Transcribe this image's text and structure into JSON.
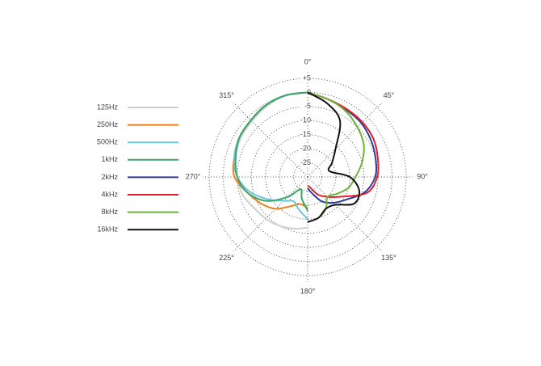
{
  "chart_data": {
    "type": "polar",
    "rlim": [
      -30,
      5
    ],
    "rticks": [
      {
        "value": 5,
        "label": "+5"
      },
      0,
      -5,
      -10,
      -15,
      -20,
      -25
    ],
    "thetaticks": [
      {
        "value": 0,
        "label": "0°"
      },
      {
        "value": 45,
        "label": "45°"
      },
      {
        "value": 90,
        "label": "90°"
      },
      {
        "value": 135,
        "label": "135°"
      },
      {
        "value": 180,
        "label": "180°"
      },
      {
        "value": 225,
        "label": "225°"
      },
      {
        "value": 270,
        "label": "270°"
      },
      {
        "value": 315,
        "label": "315°"
      }
    ],
    "grid": true,
    "legend": "left",
    "series": [
      {
        "name": "125Hz",
        "color": "#cfcfcf",
        "theta": [
          180,
          195,
          210,
          225,
          240,
          255,
          270,
          285,
          300,
          315,
          330,
          345,
          360
        ],
        "values": [
          -12,
          -11,
          -10,
          -9,
          -8,
          -6,
          -5,
          -3.5,
          -2.5,
          -2,
          -1,
          0,
          0
        ]
      },
      {
        "name": "250Hz",
        "color": "#f07f1e",
        "theta": [
          180,
          195,
          210,
          225,
          240,
          255,
          270,
          285,
          300,
          315,
          330,
          345,
          360
        ],
        "values": [
          -19,
          -20,
          -18,
          -14,
          -11,
          -8,
          -4,
          -3,
          -2,
          -1.5,
          -0.5,
          0,
          0
        ]
      },
      {
        "name": "500Hz",
        "color": "#6cc5d6",
        "theta": [
          180,
          195,
          210,
          225,
          240,
          255,
          270,
          285,
          300,
          315,
          330,
          345,
          360
        ],
        "values": [
          -15,
          -18,
          -20,
          -18,
          -14,
          -9,
          -5,
          -3,
          -2,
          -1.5,
          -0.5,
          0,
          0
        ]
      },
      {
        "name": "1kHz",
        "color": "#3aa56a",
        "theta": [
          180,
          195,
          210,
          225,
          240,
          255,
          270,
          285,
          300,
          315,
          330,
          345,
          360
        ],
        "values": [
          -18,
          -22,
          -25,
          -20,
          -13,
          -8,
          -5,
          -3.5,
          -2,
          -1.5,
          -0.5,
          0,
          0
        ]
      },
      {
        "name": "2kHz",
        "color": "#2b3d99",
        "theta": [
          0,
          15,
          30,
          45,
          60,
          75,
          90,
          105,
          120,
          135,
          150,
          165,
          180
        ],
        "values": [
          0,
          -1.5,
          -2.5,
          -3,
          -4,
          -5,
          -6,
          -9,
          -14,
          -17,
          -20,
          -24,
          -26
        ]
      },
      {
        "name": "4kHz",
        "color": "#e0202a",
        "theta": [
          0,
          15,
          30,
          45,
          60,
          75,
          90,
          105,
          120,
          135,
          150,
          165,
          180
        ],
        "values": [
          0,
          -1.5,
          -2.2,
          -2.5,
          -3,
          -4.2,
          -5.3,
          -8.2,
          -16,
          -20,
          -22.8,
          -26,
          -27
        ]
      },
      {
        "name": "8kHz",
        "color": "#6cb33a",
        "theta": [
          0,
          15,
          30,
          45,
          60,
          75,
          90,
          105,
          120,
          135,
          150,
          165,
          180
        ],
        "values": [
          0,
          -1.5,
          -3,
          -5,
          -7,
          -10,
          -13,
          -15,
          -18,
          -20,
          -17,
          -15,
          -14
        ]
      },
      {
        "name": "16kHz",
        "color": "#111111",
        "theta": [
          0,
          15,
          30,
          45,
          60,
          75,
          90,
          105,
          120,
          135,
          150,
          165,
          180
        ],
        "values": [
          0,
          -3,
          -7,
          -16,
          -20,
          -22,
          -15,
          -11,
          -11,
          -16,
          -17,
          -15,
          -14
        ]
      }
    ]
  }
}
